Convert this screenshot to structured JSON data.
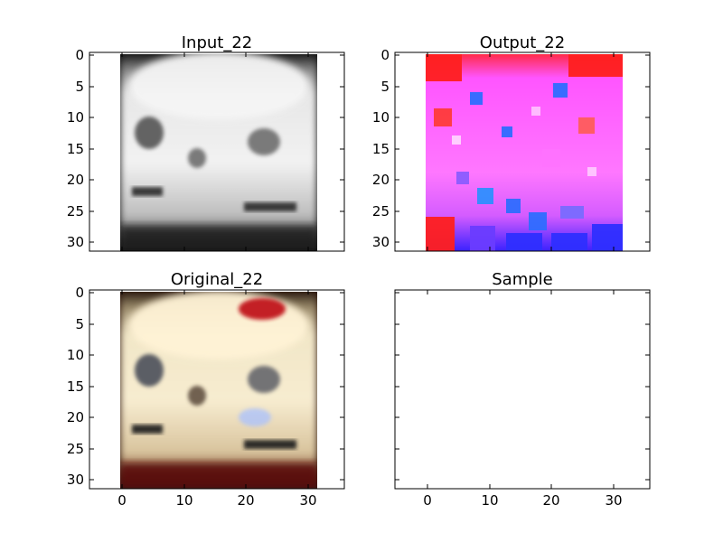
{
  "chart_data": [
    {
      "type": "image",
      "title": "Input_22",
      "colormap": "grayscale",
      "description_style": "blurred grayscale car front",
      "xlim": [
        -5,
        36
      ],
      "ylim": [
        31.5,
        -0.5
      ],
      "image_extent": [
        -0.5,
        31.5
      ],
      "xticks": [],
      "yticks": [
        0,
        5,
        10,
        15,
        20,
        25,
        30
      ],
      "show_xtick_labels": false,
      "show_ytick_labels": true
    },
    {
      "type": "image",
      "title": "Output_22",
      "colormap": "magenta-noise",
      "xlim": [
        -5,
        36
      ],
      "ylim": [
        31.5,
        -0.5
      ],
      "image_extent": [
        -0.5,
        31.5
      ],
      "xticks": [],
      "yticks": [
        0,
        5,
        10,
        15,
        20,
        25,
        30
      ],
      "show_xtick_labels": false,
      "show_ytick_labels": true
    },
    {
      "type": "image",
      "title": "Original_22",
      "colormap": "color",
      "xlim": [
        -5,
        36
      ],
      "ylim": [
        31.5,
        -0.5
      ],
      "image_extent": [
        -0.5,
        31.5
      ],
      "xticks": [
        0,
        10,
        20,
        30
      ],
      "yticks": [
        0,
        5,
        10,
        15,
        20,
        25,
        30
      ],
      "show_xtick_labels": true,
      "show_ytick_labels": true
    },
    {
      "type": "image",
      "title": "Sample",
      "colormap": "none",
      "xlim": [
        -5,
        36
      ],
      "ylim": [
        31.5,
        -0.5
      ],
      "image_extent": null,
      "xticks": [
        0,
        10,
        20,
        30
      ],
      "yticks": [],
      "show_xtick_labels": true,
      "show_ytick_labels": false
    }
  ]
}
